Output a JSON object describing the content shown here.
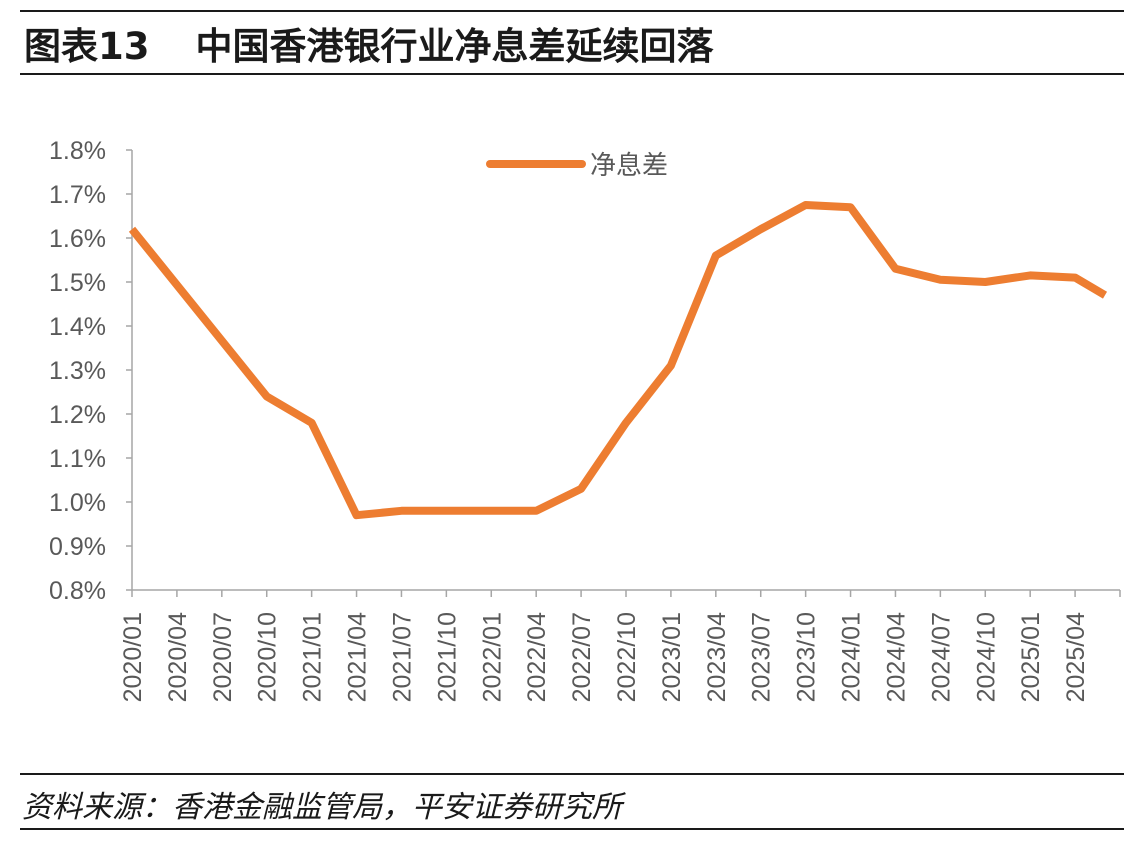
{
  "header": {
    "figure_label": "图表13",
    "figure_title": "中国香港银行业净息差延续回落"
  },
  "footer": {
    "source": "资料来源：香港金融监管局，平安证券研究所"
  },
  "chart_data": {
    "type": "line",
    "title": "中国香港银行业净息差延续回落",
    "ylim": [
      0.8,
      1.8
    ],
    "y_ticks": [
      "0.8%",
      "0.9%",
      "1.0%",
      "1.1%",
      "1.2%",
      "1.3%",
      "1.4%",
      "1.5%",
      "1.6%",
      "1.7%",
      "1.8%"
    ],
    "x_tick_labels": [
      "2020/01",
      "2020/04",
      "2020/07",
      "2020/10",
      "2021/01",
      "2021/04",
      "2021/07",
      "2021/10",
      "2022/01",
      "2022/04",
      "2022/07",
      "2022/10",
      "2023/01",
      "2023/04",
      "2023/07",
      "2023/10",
      "2024/01",
      "2024/04",
      "2024/07",
      "2024/10",
      "2025/01",
      "2025/04"
    ],
    "legend": {
      "position": "top-center"
    },
    "grid": false,
    "line_color": "#ED7D31",
    "series": [
      {
        "name": "净息差",
        "points": [
          [
            "2020/01",
            1.62
          ],
          [
            "2020/10",
            1.24
          ],
          [
            "2021/01",
            1.18
          ],
          [
            "2021/04",
            0.97
          ],
          [
            "2021/07",
            0.98
          ],
          [
            "2021/10",
            0.98
          ],
          [
            "2022/01",
            0.98
          ],
          [
            "2022/04",
            0.98
          ],
          [
            "2022/07",
            1.03
          ],
          [
            "2022/10",
            1.18
          ],
          [
            "2023/01",
            1.31
          ],
          [
            "2023/04",
            1.56
          ],
          [
            "2023/07",
            1.62
          ],
          [
            "2023/10",
            1.675
          ],
          [
            "2024/01",
            1.67
          ],
          [
            "2024/04",
            1.53
          ],
          [
            "2024/07",
            1.505
          ],
          [
            "2024/10",
            1.5
          ],
          [
            "2025/01",
            1.515
          ],
          [
            "2025/04",
            1.51
          ],
          [
            "2025/06",
            1.47
          ]
        ]
      }
    ]
  }
}
